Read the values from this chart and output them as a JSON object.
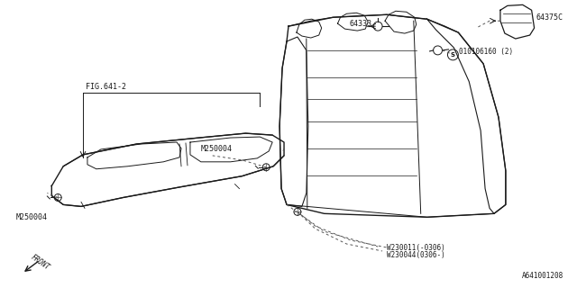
{
  "bg_color": "#ffffff",
  "line_color": "#1a1a1a",
  "fig_width": 6.4,
  "fig_height": 3.2,
  "dpi": 100,
  "labels": {
    "fig641": "FIG.641-2",
    "m250004_top": "M250004",
    "m250004_bot": "M250004",
    "l64333": "64333",
    "l64375C": "64375C",
    "l010106160": "010106160 (2)",
    "W230011": "W230011(-0306)",
    "W230044": "W230044(0306-)",
    "front": "FRONT",
    "part_num": "A641001208"
  },
  "font_size": 6.0,
  "small_font": 5.5
}
